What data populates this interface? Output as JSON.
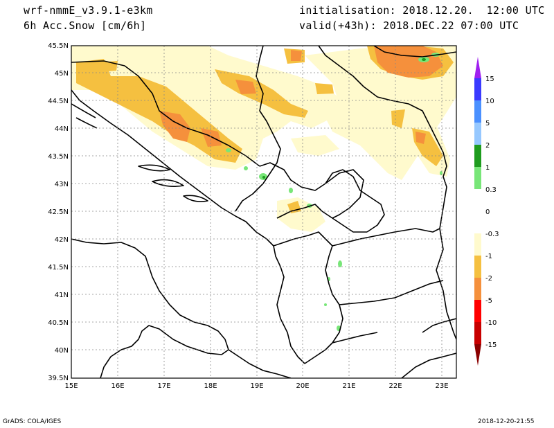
{
  "header": {
    "model": "wrf-nmmE_v3.9.1-e3km",
    "field": "6h Acc.Snow [cm/6h]",
    "init": "initialisation: 2018.12.20.  12:00 UTC",
    "valid": "valid(+43h): 2018.DEC.22 07:00 UTC"
  },
  "axes": {
    "lat_labels": [
      "45.5N",
      "45N",
      "44.5N",
      "44N",
      "43.5N",
      "43N",
      "42.5N",
      "42N",
      "41.5N",
      "41N",
      "40.5N",
      "40N",
      "39.5N"
    ],
    "lon_labels": [
      "15E",
      "16E",
      "17E",
      "18E",
      "19E",
      "20E",
      "21E",
      "22E",
      "23E"
    ]
  },
  "legend": {
    "labels": [
      "15",
      "10",
      "5",
      "2",
      "1",
      "0.3",
      "0",
      "-0.3",
      "-1",
      "-2",
      "-5",
      "-10",
      "-15"
    ],
    "colors": [
      "#a020f0",
      "#3a3aff",
      "#4a90ff",
      "#96c8ff",
      "#1e9c1e",
      "#78e678",
      "#ffffff",
      "#fffacd",
      "#f5c040",
      "#f5903c",
      "#ff0000",
      "#c80000",
      "#8b0000"
    ]
  },
  "footer": {
    "left": "GrADS: COLA/IGES",
    "right": "2018-12-20-21:55"
  }
}
